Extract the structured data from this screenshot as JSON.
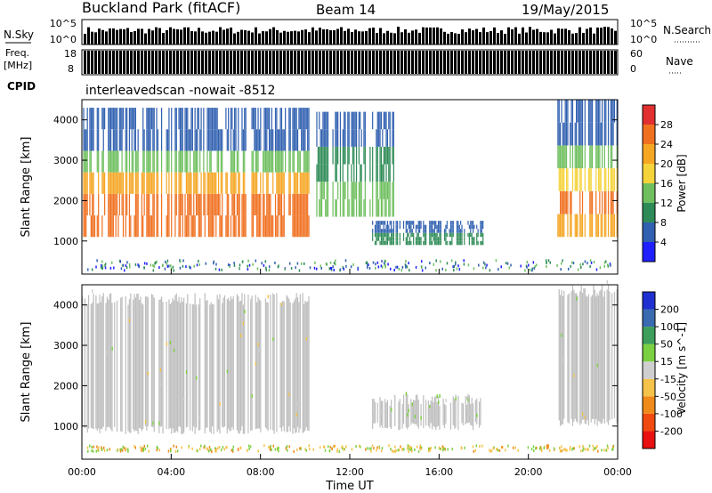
{
  "header": {
    "station": "Buckland Park (fitACF)",
    "beam": "Beam 14",
    "date": "19/May/2015"
  },
  "strip": {
    "nsky_label": "N.Sky",
    "nsearch_label": "N.Search",
    "noise_ticks": [
      "10^5",
      "10^0"
    ],
    "freq_label": "Freq.",
    "freq_unit": "[MHz]",
    "freq_ticks": [
      "18",
      "8"
    ],
    "nave_label": "Nave",
    "nave_ticks": [
      "60",
      "0"
    ],
    "cpid_label": "CPID",
    "cpid_text": "interleavedscan -nowait -8512"
  },
  "colors": {
    "power_scale": [
      "#2020ff",
      "#3060b0",
      "#2e8b57",
      "#6fbf5f",
      "#f5d33a",
      "#f5a623",
      "#f07020",
      "#e23030"
    ],
    "velocity_scale": [
      "#e81010",
      "#f04a10",
      "#f08a1a",
      "#f5c24a",
      "#cfcfcf",
      "#7ad040",
      "#3c9e5a",
      "#3a6ab0",
      "#2030d0"
    ],
    "ground_scatter": "#bdbdbd"
  },
  "chart_data": [
    {
      "type": "heatmap",
      "title": "",
      "xlabel": "",
      "ylabel": "Slant Range [km]",
      "ylim": [
        180,
        4500
      ],
      "xlim": [
        0,
        24
      ],
      "yticks": [
        "1000",
        "2000",
        "3000",
        "4000"
      ],
      "colorbar": {
        "label": "Power [dB]",
        "range": [
          0,
          32
        ],
        "ticks": [
          "4",
          "8",
          "12",
          "16",
          "20",
          "24",
          "28"
        ]
      },
      "regions": [
        {
          "x": [
            0,
            10.2
          ],
          "y": [
            1100,
            4300
          ],
          "values_dB": [
            4,
            30
          ]
        },
        {
          "x": [
            10.5,
            14.0
          ],
          "y": [
            1600,
            4200
          ],
          "values_dB": [
            4,
            16
          ]
        },
        {
          "x": [
            13.0,
            18.0
          ],
          "y": [
            900,
            1500
          ],
          "values_dB": [
            4,
            12
          ]
        },
        {
          "x": [
            21.3,
            24.0
          ],
          "y": [
            1100,
            4500
          ],
          "values_dB": [
            4,
            28
          ]
        }
      ]
    },
    {
      "type": "heatmap",
      "title": "",
      "xlabel": "Time UT",
      "ylabel": "Slant Range [km]",
      "ylim": [
        180,
        4500
      ],
      "xlim": [
        0,
        24
      ],
      "xticks": [
        "00:00",
        "04:00",
        "08:00",
        "12:00",
        "16:00",
        "20:00",
        "00:00"
      ],
      "yticks": [
        "1000",
        "2000",
        "3000",
        "4000"
      ],
      "colorbar": {
        "label": "Velocity [m s^-1]",
        "ticks": [
          "200",
          "100",
          "50",
          "15",
          "-15",
          "-50",
          "-100",
          "-200"
        ]
      },
      "regions": [
        {
          "x": [
            0,
            10.2
          ],
          "y": [
            800,
            4300
          ],
          "values_ms": [
            -50,
            50
          ]
        },
        {
          "x": [
            13.0,
            18.0
          ],
          "y": [
            900,
            1800
          ],
          "values_ms": [
            -15,
            50
          ]
        },
        {
          "x": [
            21.3,
            24.0
          ],
          "y": [
            1000,
            4500
          ],
          "values_ms": [
            -50,
            50
          ]
        }
      ]
    }
  ]
}
